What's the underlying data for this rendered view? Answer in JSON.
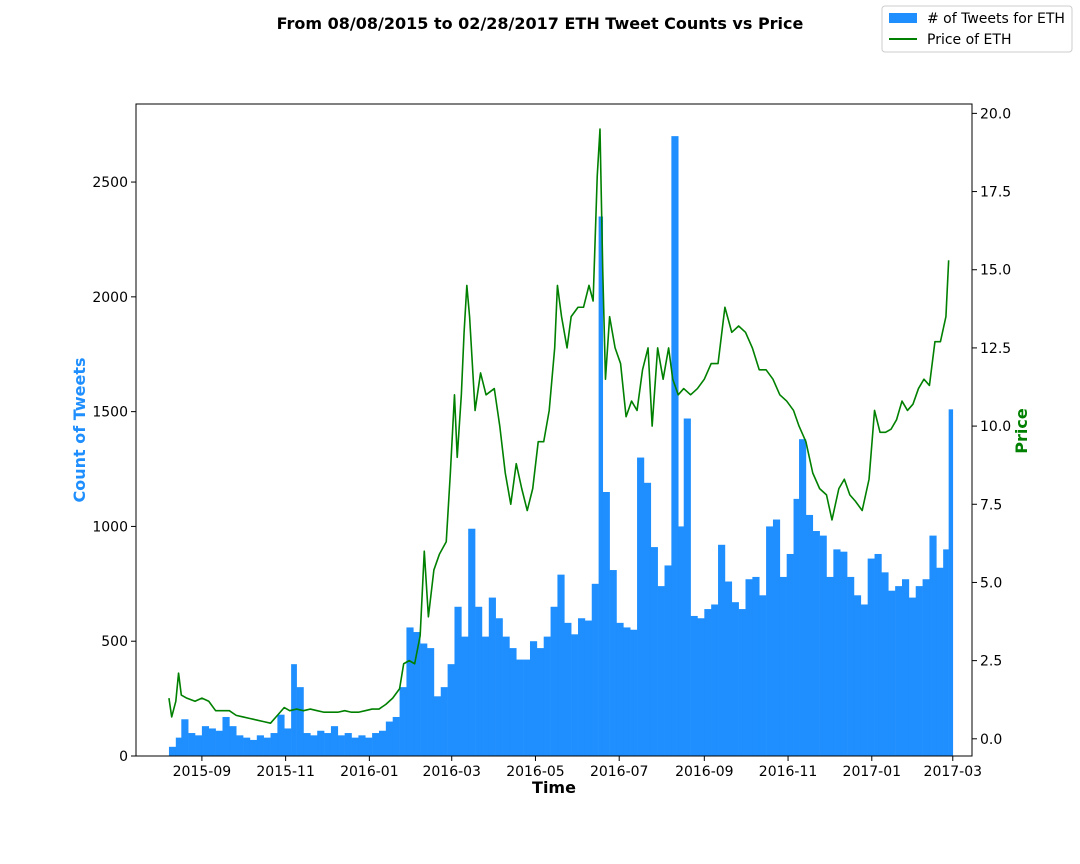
{
  "chart_data": {
    "type": "bar+line",
    "title": "From 08/08/2015 to 02/28/2017 ETH Tweet Counts vs Price",
    "xlabel": "Time",
    "ylabel_left": "Count of Tweets",
    "ylabel_right": "Price",
    "xlim": [
      "2015-07-15",
      "2017-03-15"
    ],
    "ylim_left": [
      0,
      2840
    ],
    "ylim_right": [
      -0.55,
      20.3
    ],
    "x_ticks": [
      "2015-09",
      "2015-11",
      "2016-01",
      "2016-03",
      "2016-05",
      "2016-07",
      "2016-09",
      "2016-11",
      "2017-01",
      "2017-03"
    ],
    "y_ticks_left": [
      "0",
      "500",
      "1000",
      "1500",
      "2000",
      "2500"
    ],
    "y_ticks_right": [
      "0.0",
      "2.5",
      "5.0",
      "7.5",
      "10.0",
      "12.5",
      "15.0",
      "17.5",
      "20.0"
    ],
    "legend_position": "top-right",
    "colors": {
      "tweets": "#1f8fff",
      "price": "#008000",
      "tweets_label": "#1f8fff",
      "price_label": "#008000"
    },
    "series": [
      {
        "name": "# of Tweets for ETH",
        "kind": "bar",
        "points": [
          [
            "2015-08-08",
            40
          ],
          [
            "2015-08-13",
            80
          ],
          [
            "2015-08-17",
            160
          ],
          [
            "2015-08-22",
            100
          ],
          [
            "2015-08-27",
            90
          ],
          [
            "2015-09-01",
            130
          ],
          [
            "2015-09-06",
            120
          ],
          [
            "2015-09-11",
            110
          ],
          [
            "2015-09-16",
            170
          ],
          [
            "2015-09-21",
            130
          ],
          [
            "2015-09-26",
            90
          ],
          [
            "2015-10-01",
            80
          ],
          [
            "2015-10-06",
            70
          ],
          [
            "2015-10-11",
            90
          ],
          [
            "2015-10-16",
            80
          ],
          [
            "2015-10-21",
            100
          ],
          [
            "2015-10-26",
            180
          ],
          [
            "2015-10-31",
            120
          ],
          [
            "2015-11-05",
            400
          ],
          [
            "2015-11-09",
            300
          ],
          [
            "2015-11-14",
            100
          ],
          [
            "2015-11-19",
            90
          ],
          [
            "2015-11-24",
            110
          ],
          [
            "2015-11-29",
            100
          ],
          [
            "2015-12-04",
            130
          ],
          [
            "2015-12-09",
            90
          ],
          [
            "2015-12-14",
            100
          ],
          [
            "2015-12-19",
            80
          ],
          [
            "2015-12-24",
            90
          ],
          [
            "2015-12-29",
            80
          ],
          [
            "2016-01-03",
            100
          ],
          [
            "2016-01-08",
            110
          ],
          [
            "2016-01-13",
            150
          ],
          [
            "2016-01-18",
            170
          ],
          [
            "2016-01-23",
            300
          ],
          [
            "2016-01-28",
            560
          ],
          [
            "2016-02-02",
            540
          ],
          [
            "2016-02-07",
            490
          ],
          [
            "2016-02-12",
            470
          ],
          [
            "2016-02-17",
            260
          ],
          [
            "2016-02-22",
            300
          ],
          [
            "2016-02-27",
            400
          ],
          [
            "2016-03-03",
            650
          ],
          [
            "2016-03-08",
            520
          ],
          [
            "2016-03-13",
            990
          ],
          [
            "2016-03-18",
            650
          ],
          [
            "2016-03-23",
            520
          ],
          [
            "2016-03-28",
            690
          ],
          [
            "2016-04-02",
            600
          ],
          [
            "2016-04-07",
            520
          ],
          [
            "2016-04-12",
            470
          ],
          [
            "2016-04-17",
            420
          ],
          [
            "2016-04-22",
            420
          ],
          [
            "2016-04-27",
            500
          ],
          [
            "2016-05-02",
            470
          ],
          [
            "2016-05-07",
            520
          ],
          [
            "2016-05-12",
            650
          ],
          [
            "2016-05-17",
            790
          ],
          [
            "2016-05-22",
            580
          ],
          [
            "2016-05-27",
            530
          ],
          [
            "2016-06-01",
            600
          ],
          [
            "2016-06-06",
            590
          ],
          [
            "2016-06-11",
            750
          ],
          [
            "2016-06-16",
            2350
          ],
          [
            "2016-06-19",
            1150
          ],
          [
            "2016-06-24",
            810
          ],
          [
            "2016-06-29",
            580
          ],
          [
            "2016-07-04",
            560
          ],
          [
            "2016-07-09",
            550
          ],
          [
            "2016-07-14",
            1300
          ],
          [
            "2016-07-19",
            1190
          ],
          [
            "2016-07-24",
            910
          ],
          [
            "2016-07-29",
            740
          ],
          [
            "2016-08-03",
            830
          ],
          [
            "2016-08-08",
            2700
          ],
          [
            "2016-08-13",
            1000
          ],
          [
            "2016-08-17",
            1470
          ],
          [
            "2016-08-22",
            610
          ],
          [
            "2016-08-27",
            600
          ],
          [
            "2016-09-01",
            640
          ],
          [
            "2016-09-06",
            660
          ],
          [
            "2016-09-11",
            920
          ],
          [
            "2016-09-16",
            760
          ],
          [
            "2016-09-21",
            670
          ],
          [
            "2016-09-26",
            640
          ],
          [
            "2016-10-01",
            770
          ],
          [
            "2016-10-06",
            780
          ],
          [
            "2016-10-11",
            700
          ],
          [
            "2016-10-16",
            1000
          ],
          [
            "2016-10-21",
            1030
          ],
          [
            "2016-10-26",
            780
          ],
          [
            "2016-10-31",
            880
          ],
          [
            "2016-11-05",
            1120
          ],
          [
            "2016-11-09",
            1380
          ],
          [
            "2016-11-14",
            1050
          ],
          [
            "2016-11-19",
            980
          ],
          [
            "2016-11-24",
            960
          ],
          [
            "2016-11-29",
            780
          ],
          [
            "2016-12-04",
            900
          ],
          [
            "2016-12-09",
            890
          ],
          [
            "2016-12-14",
            780
          ],
          [
            "2016-12-19",
            700
          ],
          [
            "2016-12-24",
            660
          ],
          [
            "2016-12-29",
            860
          ],
          [
            "2017-01-03",
            880
          ],
          [
            "2017-01-08",
            800
          ],
          [
            "2017-01-13",
            720
          ],
          [
            "2017-01-18",
            740
          ],
          [
            "2017-01-23",
            770
          ],
          [
            "2017-01-28",
            690
          ],
          [
            "2017-02-02",
            740
          ],
          [
            "2017-02-07",
            770
          ],
          [
            "2017-02-12",
            960
          ],
          [
            "2017-02-17",
            820
          ],
          [
            "2017-02-22",
            900
          ],
          [
            "2017-02-26",
            1510
          ]
        ]
      },
      {
        "name": "Price of ETH",
        "kind": "line",
        "points": [
          [
            "2015-08-08",
            1.3
          ],
          [
            "2015-08-10",
            0.7
          ],
          [
            "2015-08-13",
            1.2
          ],
          [
            "2015-08-15",
            2.1
          ],
          [
            "2015-08-17",
            1.4
          ],
          [
            "2015-08-21",
            1.3
          ],
          [
            "2015-08-27",
            1.2
          ],
          [
            "2015-09-01",
            1.3
          ],
          [
            "2015-09-06",
            1.2
          ],
          [
            "2015-09-11",
            0.9
          ],
          [
            "2015-09-16",
            0.9
          ],
          [
            "2015-09-21",
            0.9
          ],
          [
            "2015-09-26",
            0.75
          ],
          [
            "2015-10-01",
            0.7
          ],
          [
            "2015-10-06",
            0.65
          ],
          [
            "2015-10-11",
            0.6
          ],
          [
            "2015-10-16",
            0.55
          ],
          [
            "2015-10-21",
            0.5
          ],
          [
            "2015-10-26",
            0.75
          ],
          [
            "2015-10-31",
            1.0
          ],
          [
            "2015-11-04",
            0.9
          ],
          [
            "2015-11-09",
            0.95
          ],
          [
            "2015-11-14",
            0.9
          ],
          [
            "2015-11-19",
            0.95
          ],
          [
            "2015-11-24",
            0.9
          ],
          [
            "2015-11-29",
            0.85
          ],
          [
            "2015-12-04",
            0.85
          ],
          [
            "2015-12-09",
            0.85
          ],
          [
            "2015-12-14",
            0.9
          ],
          [
            "2015-12-19",
            0.85
          ],
          [
            "2015-12-24",
            0.85
          ],
          [
            "2015-12-29",
            0.9
          ],
          [
            "2016-01-03",
            0.95
          ],
          [
            "2016-01-08",
            0.95
          ],
          [
            "2016-01-13",
            1.1
          ],
          [
            "2016-01-18",
            1.3
          ],
          [
            "2016-01-23",
            1.6
          ],
          [
            "2016-01-26",
            2.4
          ],
          [
            "2016-01-30",
            2.5
          ],
          [
            "2016-02-03",
            2.4
          ],
          [
            "2016-02-07",
            3.3
          ],
          [
            "2016-02-10",
            6.0
          ],
          [
            "2016-02-13",
            3.9
          ],
          [
            "2016-02-17",
            5.4
          ],
          [
            "2016-02-21",
            5.9
          ],
          [
            "2016-02-26",
            6.3
          ],
          [
            "2016-02-29",
            8.5
          ],
          [
            "2016-03-03",
            11.0
          ],
          [
            "2016-03-05",
            9.0
          ],
          [
            "2016-03-08",
            11.0
          ],
          [
            "2016-03-10",
            13.0
          ],
          [
            "2016-03-12",
            14.5
          ],
          [
            "2016-03-14",
            13.5
          ],
          [
            "2016-03-18",
            10.5
          ],
          [
            "2016-03-22",
            11.7
          ],
          [
            "2016-03-26",
            11.0
          ],
          [
            "2016-04-01",
            11.2
          ],
          [
            "2016-04-05",
            10.0
          ],
          [
            "2016-04-09",
            8.5
          ],
          [
            "2016-04-13",
            7.5
          ],
          [
            "2016-04-17",
            8.8
          ],
          [
            "2016-04-21",
            8.0
          ],
          [
            "2016-04-25",
            7.3
          ],
          [
            "2016-04-29",
            8.0
          ],
          [
            "2016-05-03",
            9.5
          ],
          [
            "2016-05-07",
            9.5
          ],
          [
            "2016-05-11",
            10.5
          ],
          [
            "2016-05-15",
            12.5
          ],
          [
            "2016-05-17",
            14.5
          ],
          [
            "2016-05-20",
            13.5
          ],
          [
            "2016-05-24",
            12.5
          ],
          [
            "2016-05-27",
            13.5
          ],
          [
            "2016-06-01",
            13.8
          ],
          [
            "2016-06-05",
            13.8
          ],
          [
            "2016-06-09",
            14.5
          ],
          [
            "2016-06-12",
            14.0
          ],
          [
            "2016-06-15",
            18.0
          ],
          [
            "2016-06-17",
            19.5
          ],
          [
            "2016-06-19",
            15.0
          ],
          [
            "2016-06-21",
            11.5
          ],
          [
            "2016-06-24",
            13.5
          ],
          [
            "2016-06-28",
            12.5
          ],
          [
            "2016-07-02",
            12.0
          ],
          [
            "2016-07-06",
            10.3
          ],
          [
            "2016-07-10",
            10.8
          ],
          [
            "2016-07-14",
            10.5
          ],
          [
            "2016-07-18",
            11.8
          ],
          [
            "2016-07-22",
            12.5
          ],
          [
            "2016-07-25",
            10.0
          ],
          [
            "2016-07-29",
            12.5
          ],
          [
            "2016-08-02",
            11.5
          ],
          [
            "2016-08-06",
            12.5
          ],
          [
            "2016-08-09",
            11.5
          ],
          [
            "2016-08-13",
            11.0
          ],
          [
            "2016-08-17",
            11.2
          ],
          [
            "2016-08-22",
            11.0
          ],
          [
            "2016-08-27",
            11.2
          ],
          [
            "2016-09-01",
            11.5
          ],
          [
            "2016-09-06",
            12.0
          ],
          [
            "2016-09-11",
            12.0
          ],
          [
            "2016-09-16",
            13.8
          ],
          [
            "2016-09-21",
            13.0
          ],
          [
            "2016-09-26",
            13.2
          ],
          [
            "2016-10-01",
            13.0
          ],
          [
            "2016-10-06",
            12.5
          ],
          [
            "2016-10-11",
            11.8
          ],
          [
            "2016-10-16",
            11.8
          ],
          [
            "2016-10-21",
            11.5
          ],
          [
            "2016-10-26",
            11.0
          ],
          [
            "2016-10-31",
            10.8
          ],
          [
            "2016-11-05",
            10.5
          ],
          [
            "2016-11-09",
            10.0
          ],
          [
            "2016-11-14",
            9.5
          ],
          [
            "2016-11-19",
            8.5
          ],
          [
            "2016-11-24",
            8.0
          ],
          [
            "2016-11-29",
            7.8
          ],
          [
            "2016-12-03",
            7.0
          ],
          [
            "2016-12-08",
            8.0
          ],
          [
            "2016-12-12",
            8.3
          ],
          [
            "2016-12-16",
            7.8
          ],
          [
            "2016-12-20",
            7.6
          ],
          [
            "2016-12-25",
            7.3
          ],
          [
            "2016-12-30",
            8.3
          ],
          [
            "2017-01-03",
            10.5
          ],
          [
            "2017-01-07",
            9.8
          ],
          [
            "2017-01-11",
            9.8
          ],
          [
            "2017-01-15",
            9.9
          ],
          [
            "2017-01-19",
            10.2
          ],
          [
            "2017-01-23",
            10.8
          ],
          [
            "2017-01-27",
            10.5
          ],
          [
            "2017-01-31",
            10.7
          ],
          [
            "2017-02-04",
            11.2
          ],
          [
            "2017-02-08",
            11.5
          ],
          [
            "2017-02-12",
            11.3
          ],
          [
            "2017-02-16",
            12.7
          ],
          [
            "2017-02-20",
            12.7
          ],
          [
            "2017-02-24",
            13.5
          ],
          [
            "2017-02-26",
            15.3
          ]
        ]
      }
    ]
  }
}
